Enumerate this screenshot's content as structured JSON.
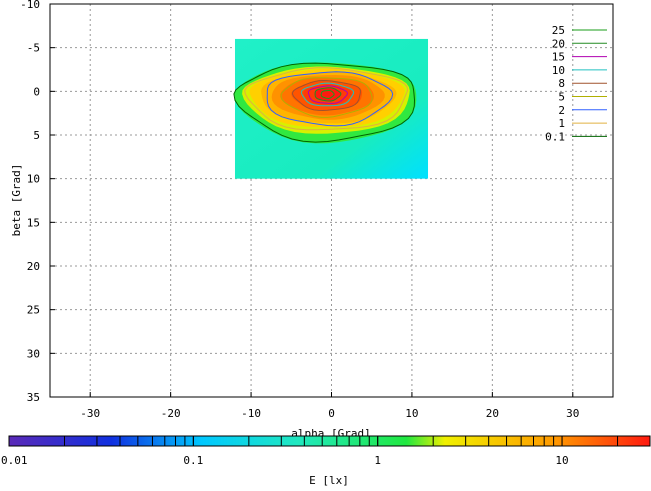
{
  "chart_data": {
    "type": "heatmap",
    "xlabel": "alpha [Grad]",
    "ylabel": "beta [Grad]",
    "xlim": [
      -35,
      35
    ],
    "ylim": [
      -10,
      35
    ],
    "y_axis_inverted": true,
    "x_ticks": [
      -30,
      -20,
      -10,
      0,
      10,
      20,
      30
    ],
    "y_ticks": [
      -10,
      -5,
      0,
      5,
      10,
      15,
      20,
      25,
      30,
      35
    ],
    "x_tick_labels": [
      "-30",
      "-20",
      "-10",
      "0",
      "10",
      "20",
      "30"
    ],
    "y_tick_labels": [
      "-10",
      "-5",
      "0",
      "5",
      "10",
      "15",
      "20",
      "25",
      "30",
      "35"
    ],
    "grid": true,
    "data_extent": {
      "alpha": [
        -12,
        12
      ],
      "beta": [
        -6,
        10
      ]
    },
    "peak": {
      "alpha": -0.5,
      "beta": 0.3,
      "value": 25
    },
    "contour_levels": [
      25,
      20,
      15,
      10,
      8,
      5,
      2,
      1,
      0.1
    ],
    "contour_level_labels": [
      "25",
      "20",
      "15",
      "10",
      "8",
      "5",
      "2",
      "1",
      "0.1"
    ],
    "contour_colors": [
      "#1a9e1a",
      "#228b22",
      "#b000b0",
      "#20c0c0",
      "#a0522d",
      "#b0b000",
      "#3060ff",
      "#e0b040",
      "#006400"
    ],
    "legend_position": "top-right",
    "colorbar": {
      "label": "E [lx]",
      "scale": "log",
      "range": [
        0.01,
        30
      ],
      "tick_labels": [
        "0.01",
        "0.1",
        "1",
        "10"
      ],
      "tick_values": [
        0.01,
        0.1,
        1,
        10
      ]
    }
  }
}
